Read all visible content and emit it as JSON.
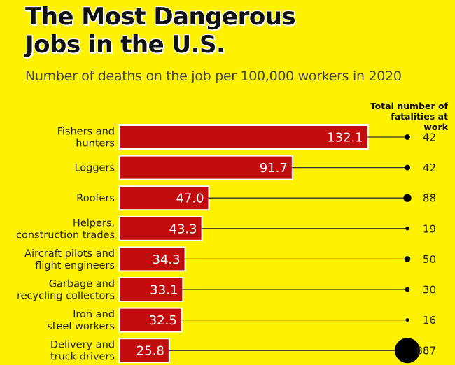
{
  "chart_data": {
    "type": "bar",
    "orientation": "horizontal",
    "title": "The Most Dangerous Jobs in the U.S.",
    "subtitle": "Number of deaths on the job per 100,000 workers in 2020",
    "secondary_header": "Total number of fatalities at work",
    "categories": [
      [
        "Fishers and",
        "hunters"
      ],
      [
        "Loggers"
      ],
      [
        "Roofers"
      ],
      [
        "Helpers,",
        "construction trades"
      ],
      [
        "Aircraft pilots and",
        "flight engineers"
      ],
      [
        "Garbage and",
        "recycling collectors"
      ],
      [
        "Iron and",
        "steel workers"
      ],
      [
        "Delivery and",
        "truck drivers"
      ]
    ],
    "values": [
      132.1,
      91.7,
      47.0,
      43.3,
      34.3,
      33.1,
      32.5,
      25.8
    ],
    "value_labels": [
      "132.1",
      "91.7",
      "47.0",
      "43.3",
      "34.3",
      "33.1",
      "32.5",
      "25.8"
    ],
    "fatalities": [
      42,
      42,
      88,
      19,
      50,
      30,
      16,
      887
    ],
    "grid": false,
    "colors": {
      "bar": "#c10d0d",
      "background": "#fff200",
      "dot": "#000000"
    }
  }
}
